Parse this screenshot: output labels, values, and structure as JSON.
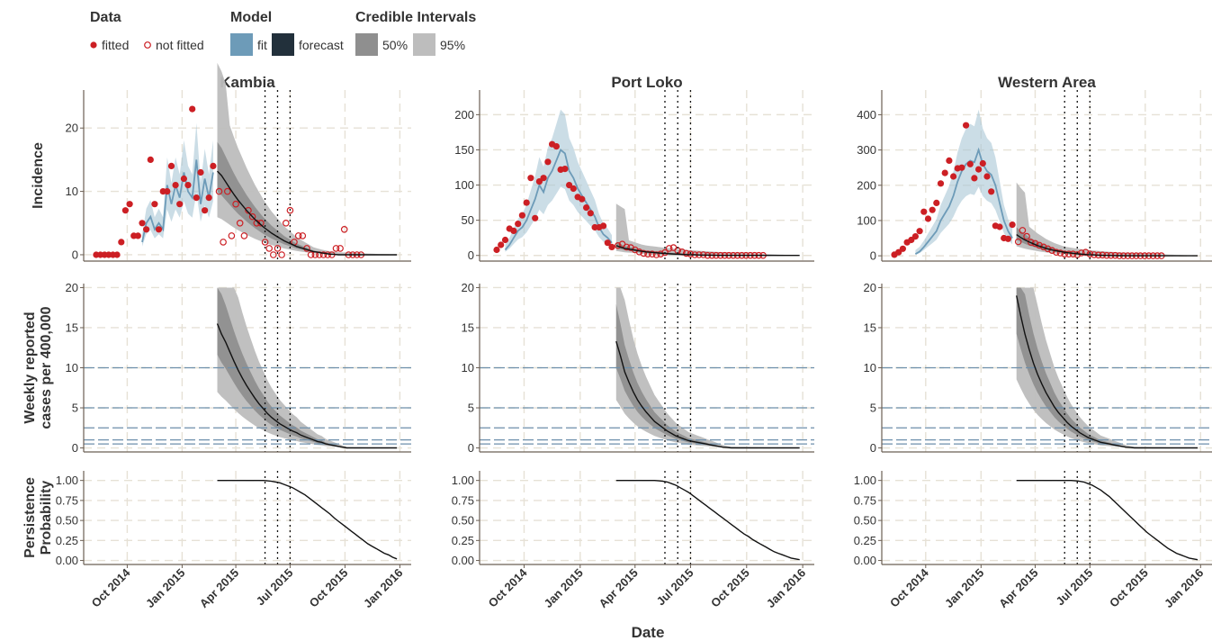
{
  "legend": {
    "data_title": "Data",
    "fitted_label": "fitted",
    "not_fitted_label": "not fitted",
    "model_title": "Model",
    "fit_label": "fit",
    "forecast_label": "forecast",
    "ci_title": "Credible Intervals",
    "ci50_label": "50%",
    "ci95_label": "95%"
  },
  "axes": {
    "x_label": "Date",
    "row_labels": [
      [
        "Incidence"
      ],
      [
        "Weekly reported",
        "cases per 400,000"
      ],
      [
        "Persistence",
        "Probability"
      ]
    ],
    "x_ticks": [
      "Oct 2014",
      "Jan 2015",
      "Apr 2015",
      "Jul 2015",
      "Oct 2015",
      "Jan 2016"
    ]
  },
  "colors": {
    "fitted": "#cc1f24",
    "fit_band": "#a9c6d6",
    "fit_line": "#6d9bb8",
    "forecast_line": "#111111",
    "ci50": "#8f8f8f",
    "ci95": "#bdbdbd",
    "threshold": "#6d8fab",
    "grid": "#e6e1d6",
    "axis": "#6b5f53"
  },
  "chart_data": [
    {
      "type": "line",
      "title": "Kambia",
      "xlabel": "Date",
      "xlim": [
        "2014-07-20",
        "2016-01-20"
      ],
      "forecast_start": "2015-03-01",
      "vlines": [
        "2015-05-20",
        "2015-06-10",
        "2015-07-01"
      ],
      "incidence": {
        "ylabel": "Incidence",
        "ylim": [
          -1,
          26
        ],
        "yticks": [
          0,
          10,
          20
        ],
        "fitted": [
          [
            0,
            0
          ],
          [
            0,
            0
          ],
          [
            0,
            0
          ],
          [
            0,
            0
          ],
          [
            0,
            0
          ],
          [
            0,
            0
          ],
          [
            0,
            2
          ],
          [
            0,
            7
          ],
          [
            0,
            8
          ],
          [
            0,
            3
          ],
          [
            0,
            3
          ],
          [
            0,
            5
          ],
          [
            0,
            4
          ],
          [
            0,
            15
          ],
          [
            0,
            8
          ],
          [
            0,
            4
          ],
          [
            0,
            10
          ],
          [
            0,
            10
          ],
          [
            0,
            14
          ],
          [
            0,
            11
          ],
          [
            0,
            8
          ],
          [
            0,
            12
          ],
          [
            0,
            11
          ],
          [
            0,
            23
          ],
          [
            0,
            9
          ],
          [
            0,
            13
          ],
          [
            0,
            7
          ],
          [
            0,
            9
          ],
          [
            0,
            14
          ]
        ],
        "not_fitted": [
          10,
          2,
          10,
          3,
          8,
          5,
          3,
          7,
          6,
          5,
          5,
          2,
          1,
          0,
          1,
          0,
          5,
          7,
          2,
          3,
          3,
          1,
          0,
          0,
          0,
          0,
          0,
          0,
          1,
          1,
          4,
          0,
          0,
          0,
          0
        ],
        "fit_median": [
          2,
          5,
          6,
          4,
          5,
          4,
          11,
          8,
          11,
          9,
          13,
          10,
          9,
          15,
          8,
          12,
          9,
          13
        ],
        "forecast_median": [
          13.2,
          12.5,
          11.5,
          10.5,
          9.5,
          8.6,
          7.8,
          7.0,
          6.3,
          5.6,
          5.0,
          4.4,
          3.9,
          3.4,
          3.0,
          2.6,
          2.2,
          1.9,
          1.6,
          1.3,
          1.1,
          0.9,
          0.7,
          0.5,
          0.4,
          0.3,
          0.2,
          0.1,
          0.05,
          0,
          0,
          0,
          0,
          0,
          0,
          0,
          0,
          0,
          0,
          0,
          0,
          0,
          0,
          0
        ]
      },
      "weekly": {
        "ylabel": "Weekly reported cases per 400,000",
        "ylim": [
          -0.5,
          20.5
        ],
        "yticks": [
          0,
          5,
          10,
          15,
          20
        ],
        "thresholds": [
          0.5,
          1,
          2.5,
          5,
          10
        ],
        "median": [
          15.5,
          14.2,
          13.2,
          12.0,
          10.8,
          9.7,
          8.7,
          7.8,
          7.0,
          6.2,
          5.5,
          4.9,
          4.3,
          3.8,
          3.4,
          3.0,
          2.7,
          2.4,
          2.1,
          1.9,
          1.6,
          1.4,
          1.2,
          1.0,
          0.8,
          0.7,
          0.5,
          0.4,
          0.3,
          0.2,
          0.1,
          0,
          0,
          0,
          0,
          0,
          0,
          0,
          0,
          0,
          0,
          0,
          0,
          0
        ]
      },
      "persistence": {
        "ylabel": "Persistence Probability",
        "ylim": [
          -0.05,
          1.12
        ],
        "yticks": [
          0.0,
          0.25,
          0.5,
          0.75,
          1.0
        ],
        "values": [
          1,
          1,
          1,
          1,
          1,
          1,
          1,
          1,
          1,
          1,
          1,
          1,
          0.995,
          0.99,
          0.98,
          0.97,
          0.95,
          0.93,
          0.91,
          0.88,
          0.85,
          0.82,
          0.78,
          0.74,
          0.7,
          0.66,
          0.62,
          0.58,
          0.53,
          0.49,
          0.45,
          0.41,
          0.37,
          0.33,
          0.29,
          0.25,
          0.21,
          0.18,
          0.15,
          0.12,
          0.09,
          0.07,
          0.04,
          0.02
        ]
      }
    },
    {
      "type": "line",
      "title": "Port Loko",
      "xlabel": "Date",
      "xlim": [
        "2014-07-20",
        "2016-01-20"
      ],
      "forecast_start": "2015-03-01",
      "vlines": [
        "2015-05-20",
        "2015-06-10",
        "2015-07-01"
      ],
      "incidence": {
        "ylabel": "Incidence",
        "ylim": [
          -8,
          235
        ],
        "yticks": [
          0,
          50,
          100,
          150,
          200
        ],
        "fitted": [
          8,
          15,
          22,
          38,
          35,
          45,
          57,
          75,
          110,
          53,
          105,
          110,
          133,
          158,
          155,
          122,
          123,
          100,
          95,
          83,
          80,
          68,
          60,
          40,
          40,
          42,
          18,
          12
        ],
        "not_fitted": [
          14,
          16,
          12,
          11,
          8,
          5,
          3,
          2,
          2,
          1,
          2,
          4,
          10,
          11,
          7,
          5,
          3,
          2,
          1,
          1,
          1,
          0,
          0,
          0,
          0,
          0,
          0,
          0,
          0,
          0,
          0,
          0,
          0,
          0,
          0
        ],
        "fit_median": [
          8,
          15,
          25,
          35,
          40,
          50,
          65,
          80,
          100,
          90,
          110,
          120,
          135,
          150,
          145,
          120,
          110,
          95,
          85,
          75,
          65,
          55,
          40,
          30,
          25,
          18
        ],
        "forecast_median": [
          14,
          12,
          10,
          9,
          8,
          7,
          6,
          5,
          4.5,
          4,
          3.5,
          3,
          2.6,
          2.2,
          1.9,
          1.6,
          1.3,
          1.1,
          0.9,
          0.7,
          0.5,
          0.4,
          0.3,
          0.2,
          0.1,
          0,
          0,
          0,
          0,
          0,
          0,
          0,
          0,
          0,
          0,
          0,
          0,
          0,
          0,
          0,
          0,
          0,
          0,
          0
        ]
      },
      "weekly": {
        "ylabel": "Weekly reported cases per 400,000",
        "ylim": [
          -0.5,
          20.5
        ],
        "yticks": [
          0,
          5,
          10,
          15,
          20
        ],
        "thresholds": [
          0.5,
          1,
          2.5,
          5,
          10
        ],
        "median": [
          13.3,
          11.5,
          9.5,
          8.2,
          7.0,
          6.0,
          5.2,
          4.5,
          3.9,
          3.3,
          2.9,
          2.5,
          2.1,
          1.8,
          1.5,
          1.3,
          1.1,
          0.9,
          0.8,
          0.7,
          0.6,
          0.5,
          0.4,
          0.3,
          0.2,
          0.1,
          0.05,
          0,
          0,
          0,
          0,
          0,
          0,
          0,
          0,
          0,
          0,
          0,
          0,
          0,
          0,
          0,
          0,
          0
        ]
      },
      "persistence": {
        "ylabel": "Persistence Probability",
        "ylim": [
          -0.05,
          1.12
        ],
        "yticks": [
          0.0,
          0.25,
          0.5,
          0.75,
          1.0
        ],
        "values": [
          1,
          1,
          1,
          1,
          1,
          1,
          1,
          1,
          1,
          1,
          0.995,
          0.99,
          0.98,
          0.96,
          0.94,
          0.91,
          0.88,
          0.85,
          0.81,
          0.77,
          0.73,
          0.69,
          0.65,
          0.61,
          0.57,
          0.53,
          0.49,
          0.45,
          0.41,
          0.37,
          0.33,
          0.3,
          0.26,
          0.23,
          0.2,
          0.17,
          0.14,
          0.11,
          0.09,
          0.07,
          0.05,
          0.03,
          0.02,
          0.01
        ]
      }
    },
    {
      "type": "line",
      "title": "Western Area",
      "xlabel": "Date",
      "xlim": [
        "2014-07-20",
        "2016-01-20"
      ],
      "forecast_start": "2015-03-01",
      "vlines": [
        "2015-05-20",
        "2015-06-10",
        "2015-07-01"
      ],
      "incidence": {
        "ylabel": "Incidence",
        "ylim": [
          -15,
          470
        ],
        "yticks": [
          0,
          100,
          200,
          300,
          400
        ],
        "fitted": [
          3,
          10,
          20,
          38,
          45,
          55,
          70,
          125,
          105,
          130,
          150,
          205,
          235,
          270,
          225,
          248,
          250,
          370,
          260,
          220,
          245,
          262,
          225,
          182,
          85,
          82,
          50,
          48,
          88
        ],
        "not_fitted": [
          40,
          72,
          55,
          38,
          35,
          30,
          25,
          20,
          15,
          10,
          8,
          5,
          5,
          5,
          3,
          8,
          10,
          5,
          3,
          2,
          2,
          1,
          1,
          1,
          0,
          0,
          0,
          0,
          0,
          0,
          0,
          0,
          0,
          0,
          0
        ],
        "fit_median": [
          5,
          12,
          25,
          40,
          55,
          70,
          100,
          120,
          140,
          170,
          210,
          240,
          260,
          270,
          265,
          300,
          260,
          240,
          230,
          200,
          150,
          100,
          70,
          50
        ],
        "forecast_median": [
          60,
          52,
          45,
          39,
          34,
          29,
          25,
          21,
          18,
          15,
          13,
          11,
          9,
          7.5,
          6.2,
          5,
          4,
          3.2,
          2.5,
          1.9,
          1.4,
          1,
          0.7,
          0.5,
          0.3,
          0.2,
          0.1,
          0,
          0,
          0,
          0,
          0,
          0,
          0,
          0,
          0,
          0,
          0,
          0,
          0,
          0,
          0,
          0,
          0
        ]
      },
      "weekly": {
        "ylabel": "Weekly reported cases per 400,000",
        "ylim": [
          -0.5,
          20.5
        ],
        "yticks": [
          0,
          5,
          10,
          15,
          20
        ],
        "thresholds": [
          0.5,
          1,
          2.5,
          5,
          10
        ],
        "median": [
          19.0,
          16.5,
          14.2,
          12.3,
          10.6,
          9.2,
          8.0,
          6.9,
          6.0,
          5.1,
          4.4,
          3.8,
          3.2,
          2.7,
          2.3,
          1.9,
          1.6,
          1.3,
          1.1,
          0.9,
          0.7,
          0.6,
          0.5,
          0.4,
          0.3,
          0.2,
          0.1,
          0.05,
          0,
          0,
          0,
          0,
          0,
          0,
          0,
          0,
          0,
          0,
          0,
          0,
          0,
          0,
          0,
          0
        ]
      },
      "persistence": {
        "ylabel": "Persistence Probability",
        "ylim": [
          -0.05,
          1.12
        ],
        "yticks": [
          0.0,
          0.25,
          0.5,
          0.75,
          1.0
        ],
        "values": [
          1,
          1,
          1,
          1,
          1,
          1,
          1,
          1,
          1,
          1,
          1,
          1,
          1,
          1,
          0.995,
          0.99,
          0.98,
          0.96,
          0.94,
          0.91,
          0.88,
          0.84,
          0.8,
          0.75,
          0.7,
          0.65,
          0.6,
          0.55,
          0.5,
          0.45,
          0.4,
          0.35,
          0.31,
          0.27,
          0.23,
          0.19,
          0.15,
          0.12,
          0.09,
          0.07,
          0.05,
          0.03,
          0.02,
          0.01
        ]
      }
    }
  ]
}
